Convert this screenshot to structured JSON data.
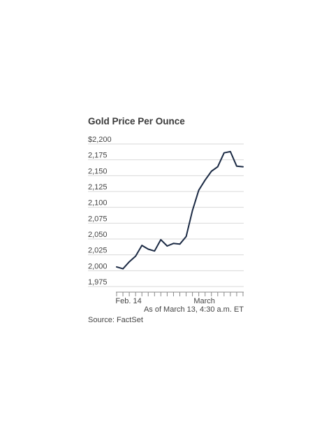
{
  "chart_data": {
    "type": "line",
    "title": "Gold Price Per Ounce",
    "yticks": [
      "$2,200",
      "2,175",
      "2,150",
      "2,125",
      "2,100",
      "2,075",
      "2,050",
      "2,025",
      "2,000",
      "1,975"
    ],
    "ytick_values": [
      2200,
      2175,
      2150,
      2125,
      2100,
      2075,
      2050,
      2025,
      2000,
      1975
    ],
    "ylim": [
      1975,
      2200
    ],
    "x_tick_labels": [
      {
        "label": "Feb. 14",
        "index": 1
      },
      {
        "label": "March",
        "index": 13
      }
    ],
    "n_ticks": 21,
    "series": [
      {
        "color": "#1b2a44",
        "values": [
          2006,
          2003,
          2014,
          2023,
          2040,
          2034,
          2031,
          2049,
          2039,
          2043,
          2042,
          2054,
          2095,
          2127,
          2143,
          2157,
          2164,
          2186,
          2188,
          2165,
          2164
        ]
      }
    ],
    "grid": true,
    "note": "As of March 13, 4:30 a.m. ET",
    "source": "Source: FactSet"
  }
}
